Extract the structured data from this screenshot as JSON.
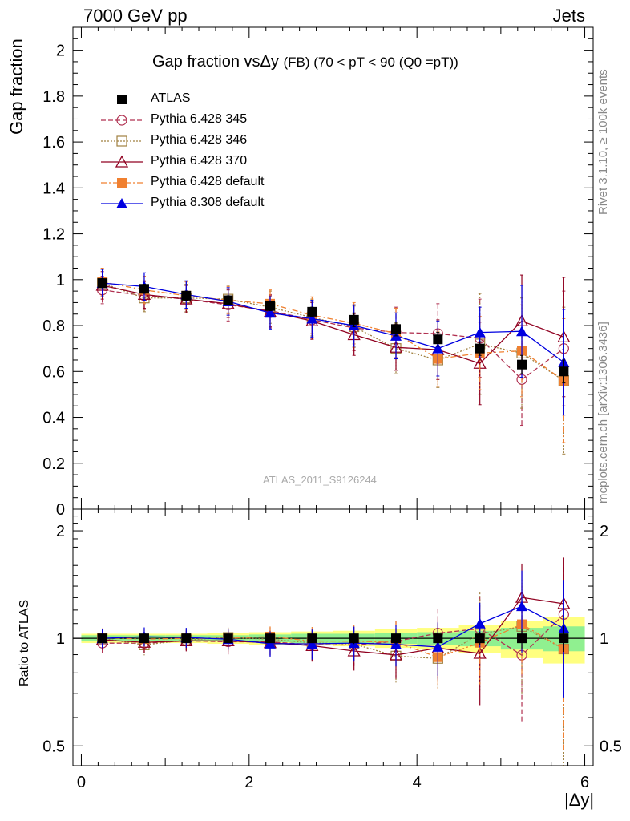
{
  "header": {
    "left": "7000 GeV pp",
    "right": "Jets"
  },
  "side_labels": {
    "rivet": "Rivet 3.1.10, ≥ 100k events",
    "mcplots": "mcplots.cern.ch [arXiv:1306.3436]"
  },
  "title": {
    "main": "Gap fraction vsΔy",
    "detail": "(FB) (70 < pT <  90 (Q0 =pT))"
  },
  "analysis_id": "ATLAS_2011_S9126244",
  "ylabel_top": "Gap fraction",
  "ylabel_bottom": "Ratio to ATLAS",
  "xlabel": "|Δy|",
  "chart_data": [
    {
      "type": "scatter",
      "panel": "main",
      "xlim": [
        -0.1,
        6.1
      ],
      "ylim": [
        0,
        2.1
      ],
      "yticks": [
        0,
        0.2,
        0.4,
        0.6,
        0.8,
        1,
        1.2,
        1.4,
        1.6,
        1.8,
        2
      ],
      "ytick_labels": [
        "0",
        "0.2",
        "0.4",
        "0.6",
        "0.8",
        "1",
        "1.2",
        "1.4",
        "1.6",
        "1.8",
        "2"
      ],
      "x": [
        0.25,
        0.75,
        1.25,
        1.75,
        2.25,
        2.75,
        3.25,
        3.75,
        4.25,
        4.75,
        5.25,
        5.75
      ],
      "legend_position": "top-left",
      "series": [
        {
          "name": "ATLAS",
          "color": "#000000",
          "marker": "square",
          "line": "none",
          "values": [
            0.985,
            0.96,
            0.93,
            0.91,
            0.885,
            0.86,
            0.825,
            0.785,
            0.74,
            0.7,
            0.63,
            0.6
          ],
          "errors": [
            0.02,
            0.02,
            0.02,
            0.02,
            0.02,
            0.02,
            0.03,
            0.03,
            0.03,
            0.03,
            0.04,
            0.05
          ]
        },
        {
          "name": "Pythia 6.428 345",
          "color": "#b03050",
          "marker": "circle-open",
          "line": "dashed",
          "values": [
            0.955,
            0.93,
            0.915,
            0.89,
            0.865,
            0.825,
            0.79,
            0.77,
            0.765,
            0.745,
            0.565,
            0.7
          ],
          "errors": [
            0.06,
            0.06,
            0.06,
            0.07,
            0.07,
            0.08,
            0.1,
            0.11,
            0.13,
            0.17,
            0.2,
            0.25
          ]
        },
        {
          "name": "Pythia 6.428 346",
          "color": "#a08040",
          "marker": "square-open",
          "line": "dotted",
          "values": [
            0.985,
            0.92,
            0.92,
            0.915,
            0.88,
            0.835,
            0.795,
            0.7,
            0.65,
            0.72,
            0.68,
            0.56
          ],
          "errors": [
            0.06,
            0.06,
            0.06,
            0.06,
            0.07,
            0.08,
            0.09,
            0.11,
            0.12,
            0.22,
            0.24,
            0.32
          ]
        },
        {
          "name": "Pythia 6.428 370",
          "color": "#900020",
          "marker": "triangle-open",
          "line": "solid",
          "values": [
            0.975,
            0.935,
            0.915,
            0.895,
            0.86,
            0.82,
            0.76,
            0.705,
            0.695,
            0.635,
            0.82,
            0.75
          ],
          "errors": [
            0.06,
            0.06,
            0.06,
            0.06,
            0.07,
            0.08,
            0.09,
            0.1,
            0.13,
            0.18,
            0.2,
            0.26
          ]
        },
        {
          "name": "Pythia 6.428 default",
          "color": "#f08030",
          "marker": "square",
          "line": "dashdot",
          "values": [
            0.99,
            0.955,
            0.93,
            0.91,
            0.895,
            0.845,
            0.81,
            0.765,
            0.655,
            0.68,
            0.69,
            0.56
          ],
          "errors": [
            0.06,
            0.06,
            0.06,
            0.06,
            0.06,
            0.08,
            0.09,
            0.11,
            0.12,
            0.16,
            0.2,
            0.27
          ]
        },
        {
          "name": "Pythia 8.308 default",
          "color": "#0000e0",
          "marker": "triangle",
          "line": "solid",
          "values": [
            0.985,
            0.97,
            0.935,
            0.905,
            0.855,
            0.83,
            0.8,
            0.755,
            0.7,
            0.77,
            0.775,
            0.64
          ],
          "errors": [
            0.06,
            0.06,
            0.06,
            0.06,
            0.07,
            0.08,
            0.09,
            0.1,
            0.12,
            0.11,
            0.2,
            0.23
          ]
        }
      ]
    },
    {
      "type": "scatter",
      "panel": "ratio",
      "ylim": [
        0.44,
        2.3
      ],
      "y_scale": "log",
      "yticks": [
        0.5,
        1,
        2
      ],
      "ytick_labels": [
        "0.5",
        "1",
        "2"
      ],
      "xlim": [
        -0.1,
        6.1
      ],
      "xticks": [
        0,
        2,
        4,
        6
      ],
      "xtick_labels": [
        "0",
        "2",
        "4",
        "6"
      ],
      "band_inner_color": "#90f090",
      "band_outer_color": "#ffff80",
      "band_inner": [
        0.02,
        0.02,
        0.02,
        0.02,
        0.025,
        0.03,
        0.03,
        0.035,
        0.04,
        0.05,
        0.07,
        0.08
      ],
      "band_outer": [
        0.03,
        0.03,
        0.03,
        0.035,
        0.04,
        0.045,
        0.05,
        0.06,
        0.07,
        0.09,
        0.12,
        0.15
      ]
    }
  ]
}
